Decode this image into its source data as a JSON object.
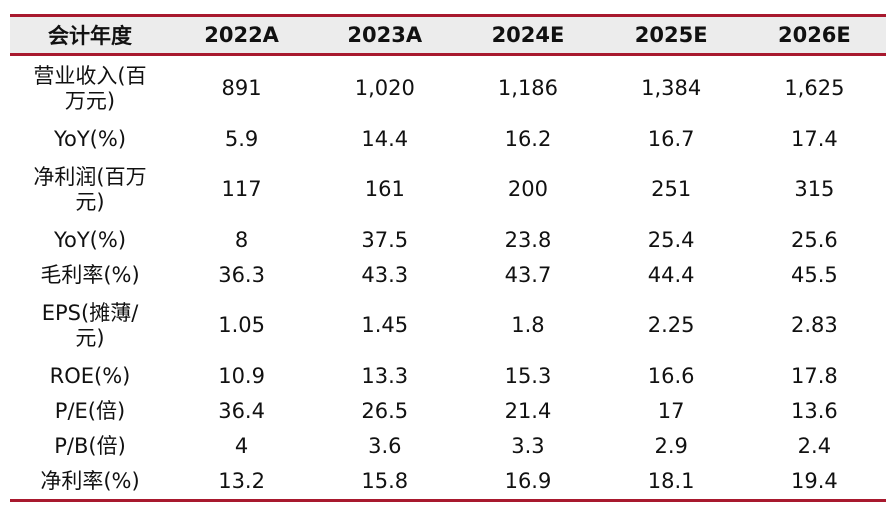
{
  "header": [
    "会计年度",
    "2022A",
    "2023A",
    "2024E",
    "2025E",
    "2026E"
  ],
  "rows": [
    {
      "label_lines": [
        "营业收入(百",
        "万元)"
      ],
      "values": [
        "891",
        "1,020",
        "1,186",
        "1,384",
        "1,625"
      ]
    },
    {
      "label_lines": [
        "YoY(%)"
      ],
      "values": [
        "5.9",
        "14.4",
        "16.2",
        "16.7",
        "17.4"
      ]
    },
    {
      "label_lines": [
        "净利润(百万",
        "元)"
      ],
      "values": [
        "117",
        "161",
        "200",
        "251",
        "315"
      ]
    },
    {
      "label_lines": [
        "YoY(%)"
      ],
      "values": [
        "8",
        "37.5",
        "23.8",
        "25.4",
        "25.6"
      ]
    },
    {
      "label_lines": [
        "毛利率(%)"
      ],
      "values": [
        "36.3",
        "43.3",
        "43.7",
        "44.4",
        "45.5"
      ]
    },
    {
      "label_lines": [
        "EPS(摊薄/",
        "元)"
      ],
      "values": [
        "1.05",
        "1.45",
        "1.8",
        "2.25",
        "2.83"
      ]
    },
    {
      "label_lines": [
        "ROE(%)"
      ],
      "values": [
        "10.9",
        "13.3",
        "15.3",
        "16.6",
        "17.8"
      ]
    },
    {
      "label_lines": [
        "P/E(倍)"
      ],
      "values": [
        "36.4",
        "26.5",
        "21.4",
        "17",
        "13.6"
      ]
    },
    {
      "label_lines": [
        "P/B(倍)"
      ],
      "values": [
        "4",
        "3.6",
        "3.3",
        "2.9",
        "2.4"
      ]
    },
    {
      "label_lines": [
        "净利率(%)"
      ],
      "values": [
        "13.2",
        "15.8",
        "16.9",
        "18.1",
        "19.4"
      ]
    }
  ]
}
